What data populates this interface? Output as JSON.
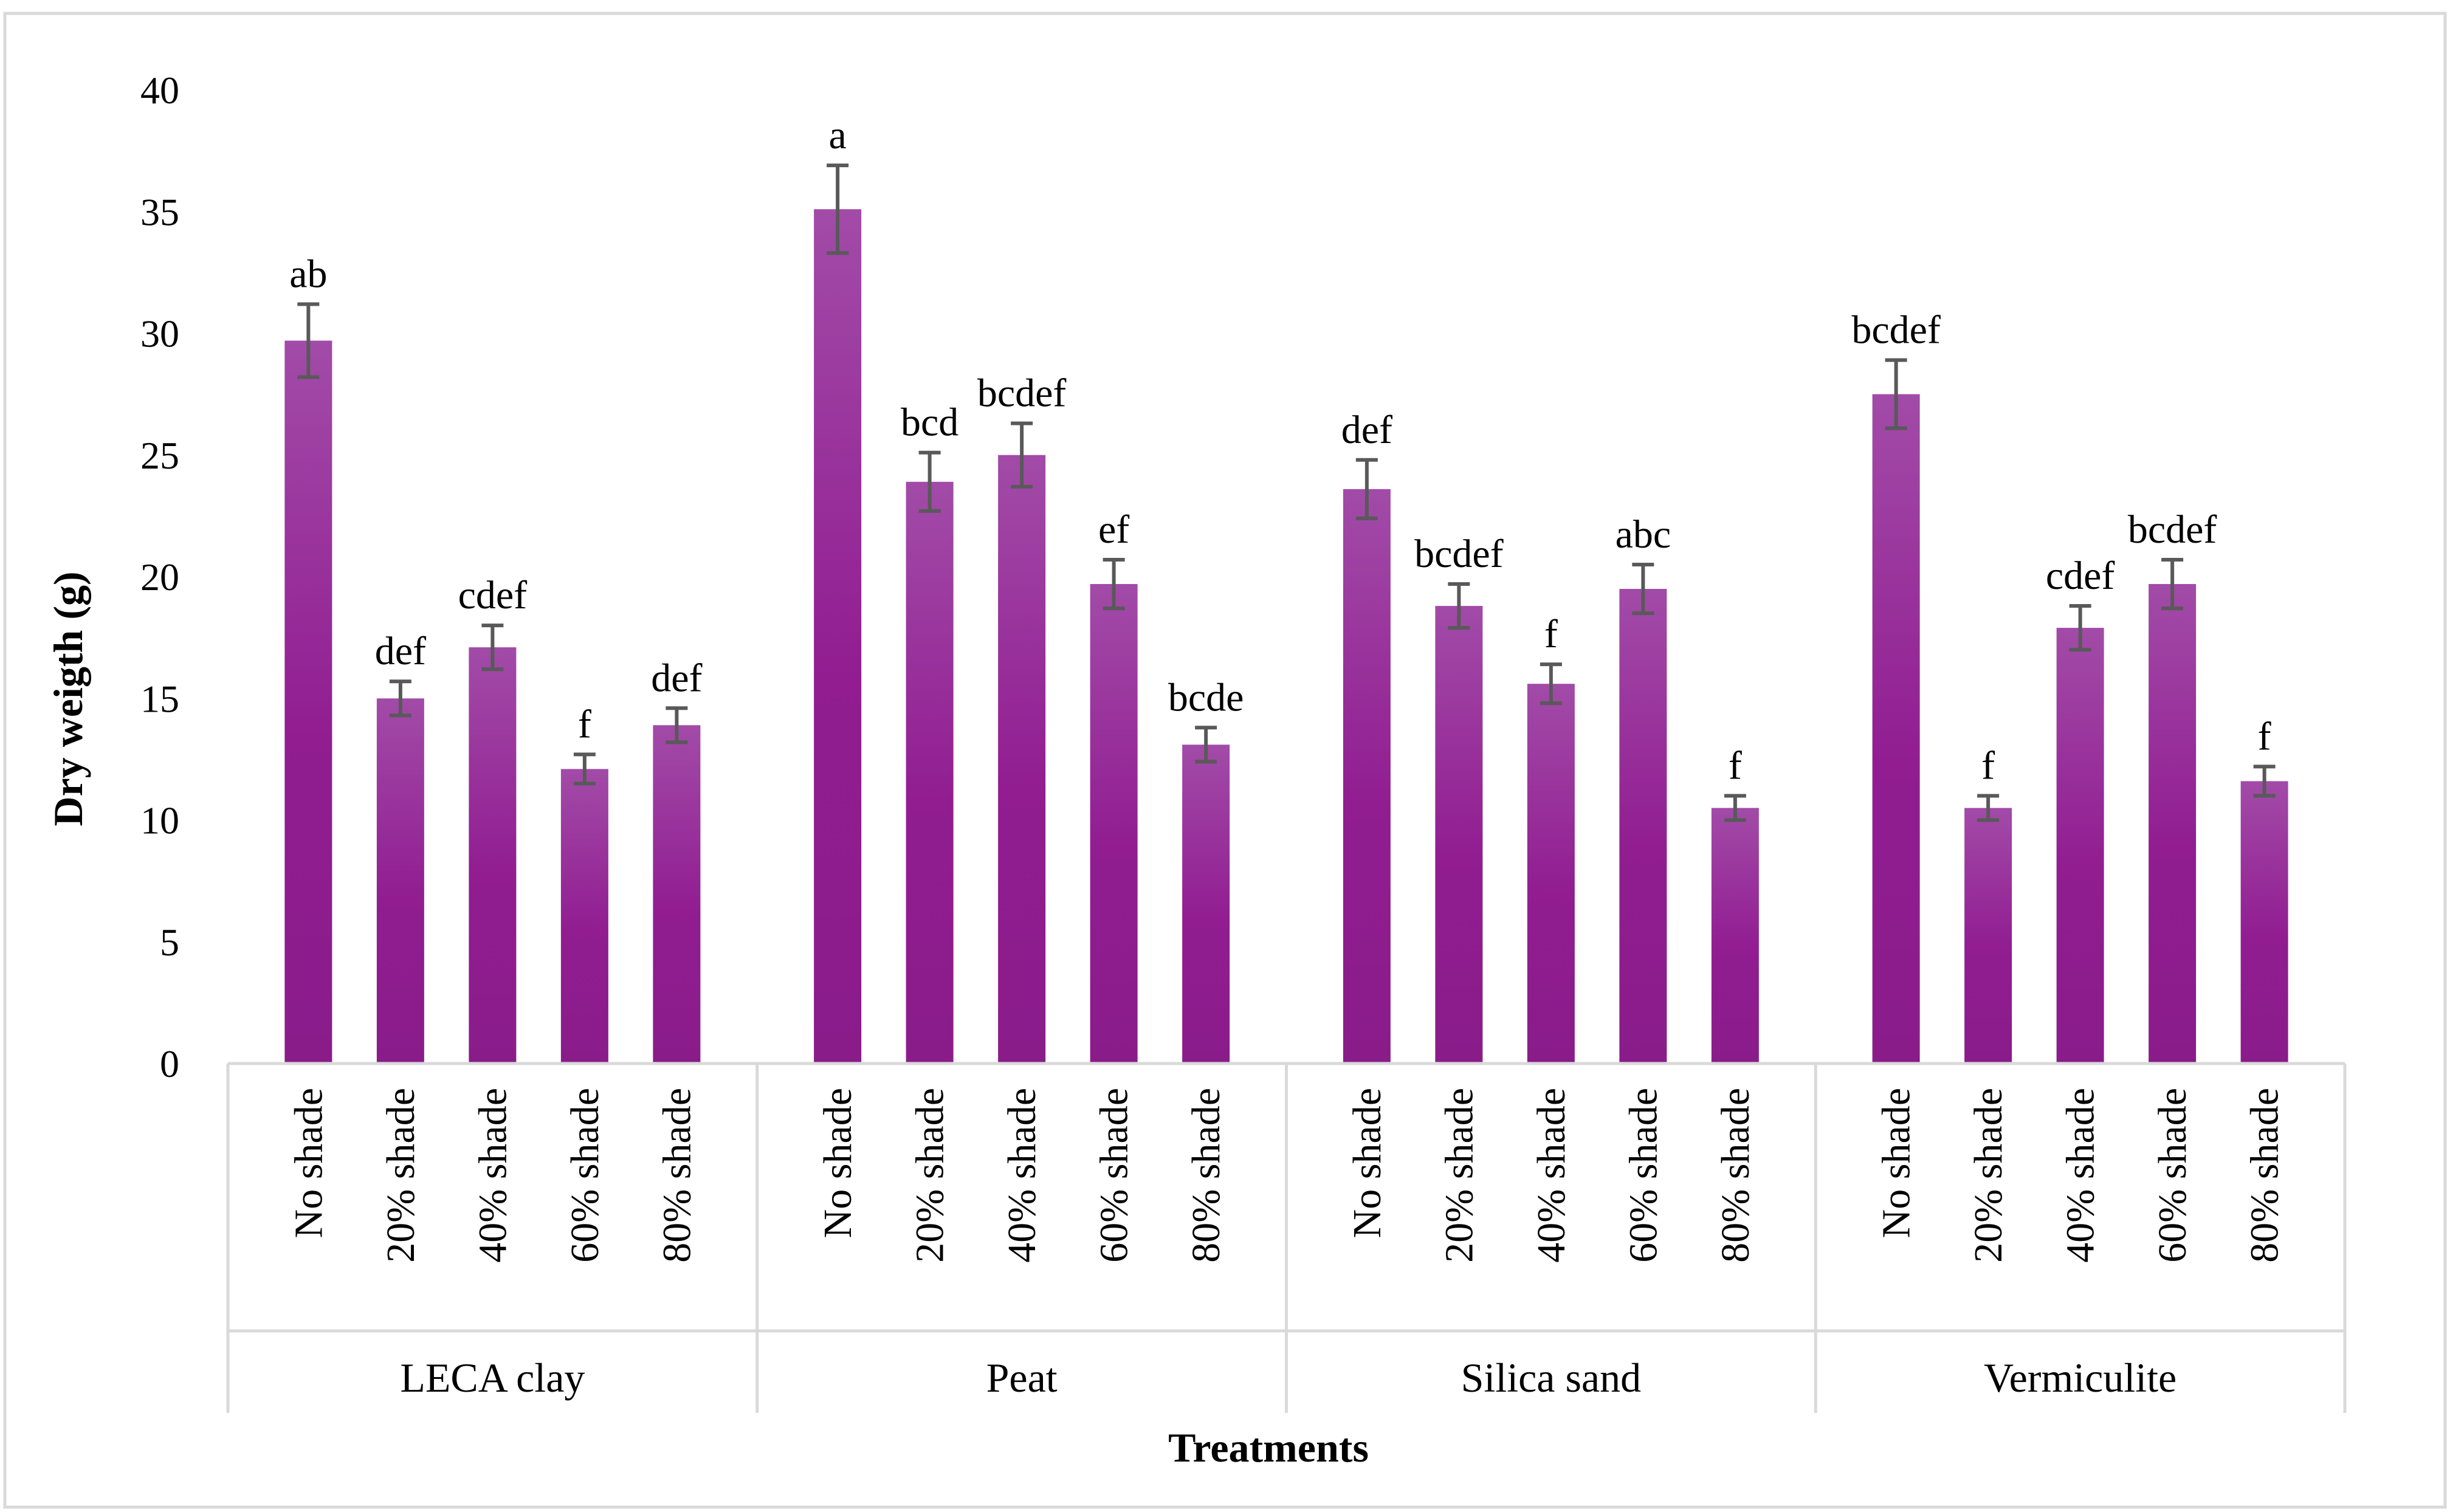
{
  "chart_data": {
    "type": "bar",
    "title": "",
    "xlabel": "Treatments",
    "ylabel": "Dry weigth (g)",
    "ylim": [
      0,
      40
    ],
    "yticks": [
      0,
      5,
      10,
      15,
      20,
      25,
      30,
      35,
      40
    ],
    "bar_color_light": "#A24BA8",
    "bar_color_dark": "#8A1C8A",
    "groups": [
      {
        "name": "LECA clay",
        "bars": [
          {
            "label": "No shade",
            "value": 29.7,
            "error": 1.5,
            "letters": "ab"
          },
          {
            "label": "20% shade",
            "value": 15.0,
            "error": 0.7,
            "letters": "def"
          },
          {
            "label": "40% shade",
            "value": 17.1,
            "error": 0.9,
            "letters": "cdef"
          },
          {
            "label": "60% shade",
            "value": 12.1,
            "error": 0.6,
            "letters": "f"
          },
          {
            "label": "80% shade",
            "value": 13.9,
            "error": 0.7,
            "letters": "def"
          }
        ]
      },
      {
        "name": "Peat",
        "bars": [
          {
            "label": "No shade",
            "value": 35.1,
            "error": 1.8,
            "letters": "a"
          },
          {
            "label": "20% shade",
            "value": 23.9,
            "error": 1.2,
            "letters": "bcd"
          },
          {
            "label": "40% shade",
            "value": 25.0,
            "error": 1.3,
            "letters": "bcdef"
          },
          {
            "label": "60% shade",
            "value": 19.7,
            "error": 1.0,
            "letters": "ef"
          },
          {
            "label": "80% shade",
            "value": 13.1,
            "error": 0.7,
            "letters": "bcde"
          }
        ]
      },
      {
        "name": "Silica sand",
        "bars": [
          {
            "label": "No shade",
            "value": 23.6,
            "error": 1.2,
            "letters": "def"
          },
          {
            "label": "20% shade",
            "value": 18.8,
            "error": 0.9,
            "letters": "bcdef"
          },
          {
            "label": "40% shade",
            "value": 15.6,
            "error": 0.8,
            "letters": "f"
          },
          {
            "label": "60% shade",
            "value": 19.5,
            "error": 1.0,
            "letters": "abc"
          },
          {
            "label": "80% shade",
            "value": 10.5,
            "error": 0.5,
            "letters": "f"
          }
        ]
      },
      {
        "name": "Vermiculite",
        "bars": [
          {
            "label": "No shade",
            "value": 27.5,
            "error": 1.4,
            "letters": "bcdef"
          },
          {
            "label": "20% shade",
            "value": 10.5,
            "error": 0.5,
            "letters": "f"
          },
          {
            "label": "40% shade",
            "value": 17.9,
            "error": 0.9,
            "letters": "cdef"
          },
          {
            "label": "60% shade",
            "value": 19.7,
            "error": 1.0,
            "letters": "bcdef"
          },
          {
            "label": "80% shade",
            "value": 11.6,
            "error": 0.6,
            "letters": "f"
          }
        ]
      }
    ]
  }
}
